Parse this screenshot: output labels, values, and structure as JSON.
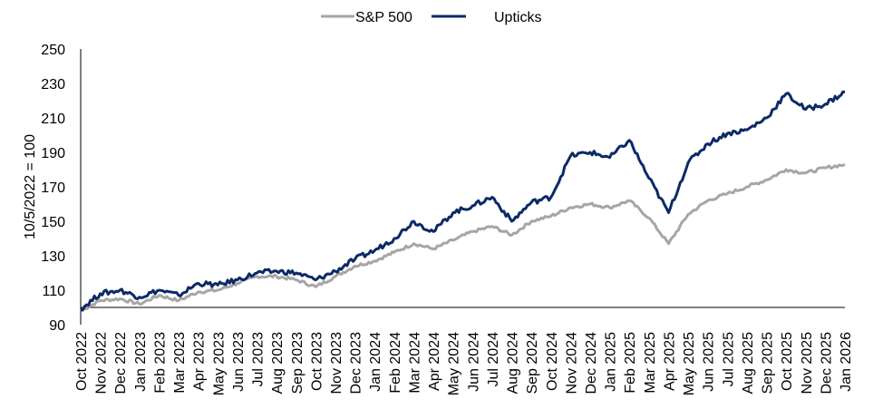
{
  "chart_data": {
    "type": "line",
    "title": "",
    "xlabel": "",
    "ylabel": "10/5/2022 = 100",
    "ylim": [
      90,
      250
    ],
    "yticks": [
      90,
      110,
      130,
      150,
      170,
      190,
      210,
      230,
      250
    ],
    "baseline": 100,
    "grid": false,
    "legend": "top-center",
    "categories": [
      "Oct 2022",
      "Nov 2022",
      "Dec 2022",
      "Jan 2023",
      "Feb 2023",
      "Mar 2023",
      "Apr 2023",
      "May 2023",
      "Jun 2023",
      "Jul 2023",
      "Aug 2023",
      "Sep 2023",
      "Oct 2023",
      "Nov 2023",
      "Dec 2023",
      "Jan 2024",
      "Feb 2024",
      "Mar 2024",
      "Apr 2024",
      "May 2024",
      "Jun 2024",
      "Jul 2024",
      "Aug 2024",
      "Sep 2024",
      "Oct 2024",
      "Nov 2024",
      "Dec 2024",
      "Jan 2025",
      "Feb 2025",
      "Mar 2025",
      "Apr 2025",
      "May 2025",
      "Jun 2025",
      "Jul 2025",
      "Aug 2025",
      "Sep 2025",
      "Oct 2025",
      "Nov 2025",
      "Dec 2025",
      "Jan 2026"
    ],
    "series": [
      {
        "name": "S&P 500",
        "color": "#a6a6a6",
        "values": [
          98,
          104,
          105,
          102,
          107,
          104,
          109,
          110,
          114,
          118,
          118,
          116,
          112,
          118,
          124,
          127,
          132,
          137,
          134,
          139,
          144,
          147,
          142,
          150,
          153,
          158,
          160,
          158,
          162,
          152,
          137,
          154,
          162,
          166,
          170,
          174,
          180,
          178,
          181,
          183
        ]
      },
      {
        "name": "Upticks",
        "color": "#0b2a66",
        "values": [
          99,
          108,
          110,
          106,
          110,
          107,
          114,
          113,
          116,
          120,
          121,
          120,
          116,
          121,
          128,
          133,
          140,
          150,
          144,
          155,
          159,
          164,
          150,
          161,
          164,
          188,
          190,
          187,
          197,
          175,
          155,
          184,
          195,
          201,
          203,
          210,
          224,
          215,
          218,
          225
        ]
      }
    ]
  }
}
